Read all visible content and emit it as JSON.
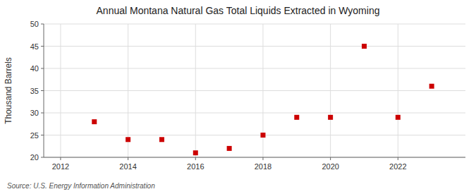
{
  "chart_data": {
    "type": "scatter",
    "title": "Annual Montana Natural Gas Total Liquids Extracted in Wyoming",
    "ylabel": "Thousand Barrels",
    "source": "Source: U.S. Energy Information Administration",
    "x": [
      2013,
      2014,
      2015,
      2016,
      2017,
      2018,
      2019,
      2020,
      2021,
      2022,
      2023
    ],
    "values": [
      28,
      24,
      24,
      21,
      22,
      25,
      29,
      29,
      45,
      29,
      36
    ],
    "color": "#CC0000",
    "marker": "square",
    "xlim": [
      2011.5,
      2024.0
    ],
    "ylim": [
      20,
      50
    ],
    "xticks": [
      2012,
      2014,
      2016,
      2018,
      2020,
      2022
    ],
    "yticks": [
      20,
      25,
      30,
      35,
      40,
      45,
      50
    ],
    "grid": true
  }
}
